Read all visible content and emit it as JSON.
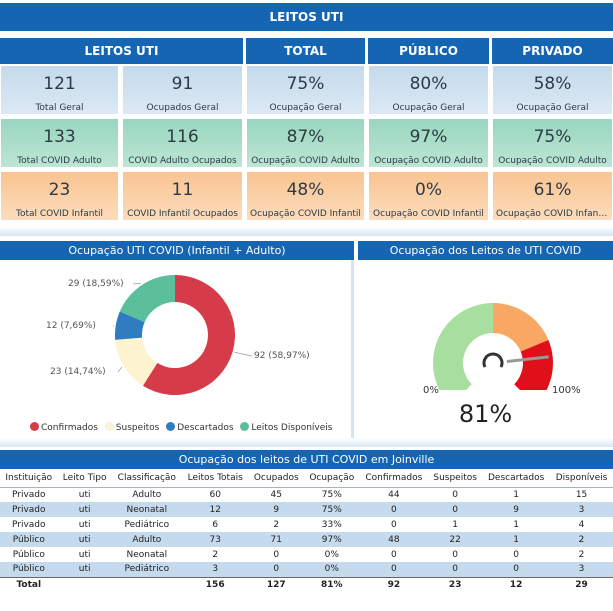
{
  "banner": "LEITOS UTI",
  "headers": [
    "LEITOS UTI",
    "TOTAL",
    "PÚBLICO",
    "PRIVADO"
  ],
  "cards": [
    [
      {
        "v": "121",
        "l": "Total Geral"
      },
      {
        "v": "91",
        "l": "Ocupados Geral"
      },
      {
        "v": "75%",
        "l": "Ocupação Geral"
      },
      {
        "v": "80%",
        "l": "Ocupação Geral"
      },
      {
        "v": "58%",
        "l": "Ocupação Geral"
      }
    ],
    [
      {
        "v": "133",
        "l": "Total COVID Adulto"
      },
      {
        "v": "116",
        "l": "COVID Adulto Ocupados"
      },
      {
        "v": "87%",
        "l": "Ocupação COVID Adulto"
      },
      {
        "v": "97%",
        "l": "Ocupação COVID Adulto"
      },
      {
        "v": "75%",
        "l": "Ocupação COVID Adulto"
      }
    ],
    [
      {
        "v": "23",
        "l": "Total COVID Infantil"
      },
      {
        "v": "11",
        "l": "COVID Infantil Ocupados"
      },
      {
        "v": "48%",
        "l": "Ocupação COVID Infantil"
      },
      {
        "v": "0%",
        "l": "Ocupação COVID Infantil"
      },
      {
        "v": "61%",
        "l": "Ocupação COVID Infantil ..."
      }
    ]
  ],
  "donut_title": "Ocupação UTI COVID (Infantil + Adulto)",
  "gauge_title": "Ocupação dos Leitos de UTI COVID",
  "gauge": {
    "min_label": "0%",
    "max_label": "100%",
    "value_label": "81%",
    "value": 0.81
  },
  "table_title": "Ocupação dos leitos de UTI COVID em Joinville",
  "table": {
    "columns": [
      "Instituição",
      "Leito Tipo",
      "Classificação",
      "Leitos Totais",
      "Ocupados",
      "Ocupação",
      "Confirmados",
      "Suspeitos",
      "Descartados",
      "Disponíveis"
    ],
    "rows": [
      [
        "Privado",
        "uti",
        "Adulto",
        "60",
        "45",
        "75%",
        "44",
        "0",
        "1",
        "15"
      ],
      [
        "Privado",
        "uti",
        "Neonatal",
        "12",
        "9",
        "75%",
        "0",
        "0",
        "9",
        "3"
      ],
      [
        "Privado",
        "uti",
        "Pediátrico",
        "6",
        "2",
        "33%",
        "0",
        "1",
        "1",
        "4"
      ],
      [
        "Público",
        "uti",
        "Adulto",
        "73",
        "71",
        "97%",
        "48",
        "22",
        "1",
        "2"
      ],
      [
        "Público",
        "uti",
        "Neonatal",
        "2",
        "0",
        "0%",
        "0",
        "0",
        "0",
        "2"
      ],
      [
        "Público",
        "uti",
        "Pediátrico",
        "3",
        "0",
        "0%",
        "0",
        "0",
        "0",
        "3"
      ]
    ],
    "total": [
      "Total",
      "",
      "",
      "156",
      "127",
      "81%",
      "92",
      "23",
      "12",
      "29"
    ]
  },
  "chart_data": {
    "type": "pie",
    "title": "Ocupação UTI COVID (Infantil + Adulto)",
    "categories": [
      "Confirmados",
      "Suspeitos",
      "Descartados",
      "Leitos Disponíveis"
    ],
    "values": [
      92,
      23,
      12,
      29
    ],
    "labels": [
      "92 (58,97%)",
      "23 (14,74%)",
      "12 (7,69%)",
      "29 (18,59%)"
    ],
    "colors": [
      "#d63b4a",
      "#fdf3d0",
      "#2f7cc0",
      "#5cbf9b"
    ],
    "legend": "bottom"
  }
}
